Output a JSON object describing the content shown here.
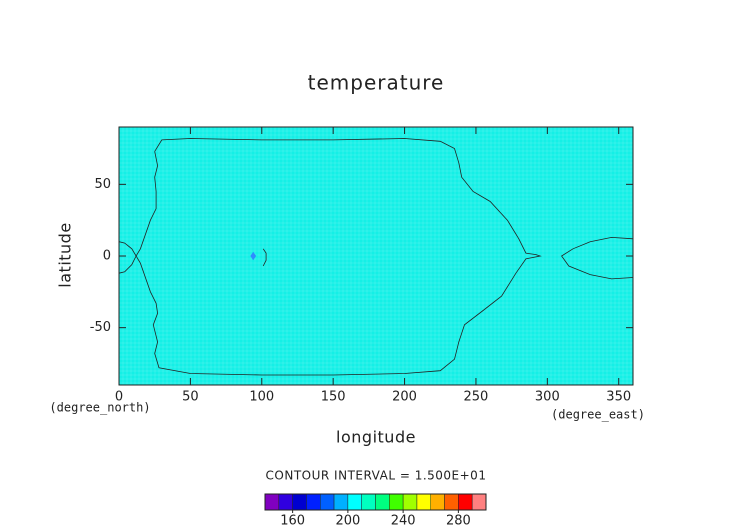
{
  "chart_data": {
    "type": "contour",
    "title": "temperature",
    "x_label": "longitude",
    "y_label": "latitude",
    "x_unit": "(degree_east)",
    "y_unit": "(degree_north)",
    "annotation": "CONTOUR INTERVAL = 1.500E+01",
    "xlim": [
      0,
      360
    ],
    "ylim": [
      -90,
      90
    ],
    "xticks": [
      0,
      50,
      100,
      150,
      200,
      250,
      300,
      350
    ],
    "yticks": [
      -50,
      0,
      50
    ],
    "field_color": "#14f0e6",
    "line_color": "#222222",
    "contours": [
      {
        "x": [
          25,
          30,
          50,
          100,
          150,
          200,
          225,
          235,
          238,
          240,
          248,
          260,
          272,
          280,
          285,
          292,
          295,
          285,
          278,
          268,
          255,
          242,
          238,
          235,
          225,
          200,
          150,
          100,
          50,
          28,
          25,
          27,
          24,
          27,
          26,
          22,
          15,
          12,
          15,
          22,
          26,
          26,
          25,
          27,
          25
        ],
        "y": [
          73,
          81,
          82,
          81,
          81,
          82,
          80,
          75,
          65,
          55,
          45,
          38,
          25,
          12,
          2,
          1,
          0,
          -2,
          -12,
          -28,
          -38,
          -48,
          -60,
          -72,
          -80,
          -82,
          -83,
          -83,
          -82,
          -78,
          -68,
          -60,
          -48,
          -40,
          -33,
          -25,
          -5,
          0,
          5,
          25,
          33,
          45,
          55,
          63,
          73
        ]
      },
      {
        "x": [
          0,
          4,
          9,
          12
        ],
        "y": [
          10,
          9,
          5,
          0
        ]
      },
      {
        "x": [
          0,
          4,
          9,
          12
        ],
        "y": [
          -12,
          -11,
          -6,
          0
        ]
      },
      {
        "x": [
          360,
          345,
          330,
          318,
          310,
          315,
          330,
          345,
          360
        ],
        "y": [
          12,
          13,
          10,
          5,
          0,
          -7,
          -13,
          -16,
          -15
        ]
      },
      {
        "x": [
          101,
          103,
          103,
          101
        ],
        "y": [
          5,
          2,
          -3,
          -7
        ]
      },
      {
        "x": [
          92,
          94,
          96,
          94,
          92
        ],
        "y": [
          0,
          3,
          0,
          -3,
          0
        ],
        "fill": "#2f8cff"
      }
    ],
    "colorbar": {
      "levels": [
        140,
        150,
        160,
        170,
        180,
        190,
        200,
        210,
        220,
        230,
        240,
        250,
        260,
        270,
        280,
        290,
        300
      ],
      "colors": [
        "#8000c0",
        "#3000e0",
        "#0000d0",
        "#0020ff",
        "#0060ff",
        "#00b0ff",
        "#00ffff",
        "#00ffc0",
        "#00ff80",
        "#40ff00",
        "#a0ff00",
        "#ffff00",
        "#ffb000",
        "#ff6000",
        "#ff0000",
        "#ff8080"
      ],
      "ticks": [
        160,
        200,
        240,
        280
      ]
    }
  }
}
